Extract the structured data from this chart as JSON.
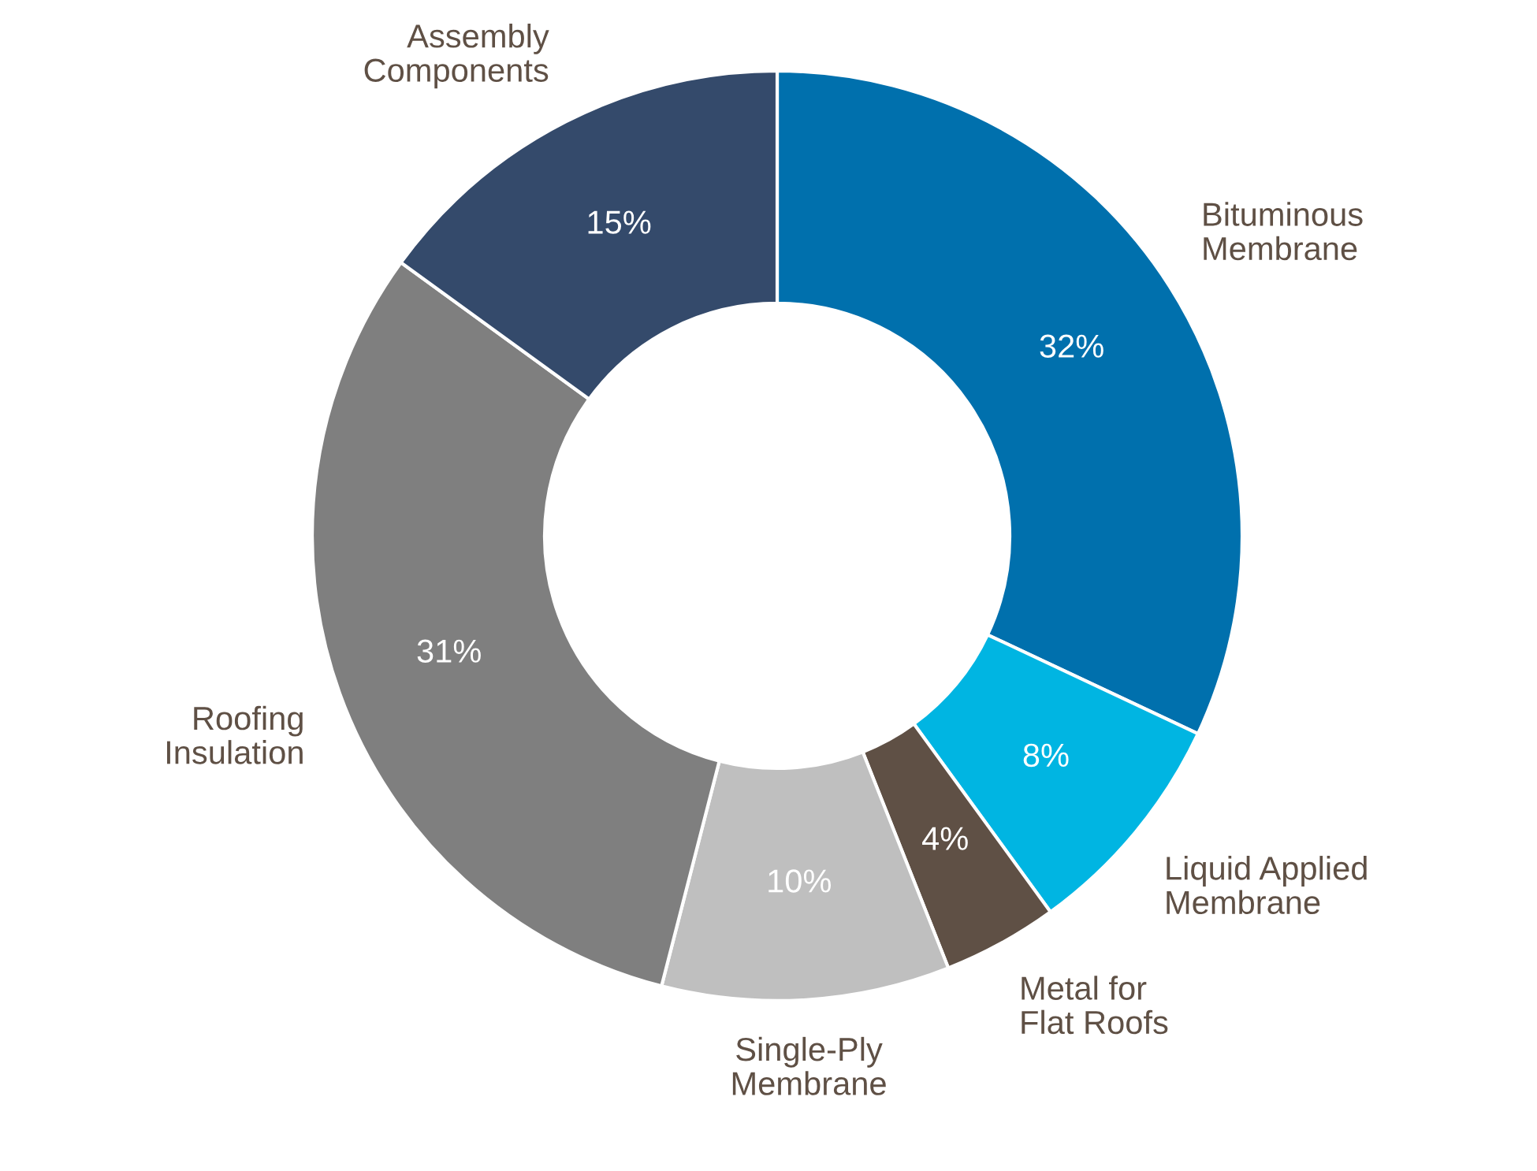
{
  "chart_data": {
    "type": "donut",
    "categories": [
      "Bituminous\nMembrane",
      "Liquid Applied\nMembrane",
      "Metal for\nFlat Roofs",
      "Single-Ply\nMembrane",
      "Roofing\nInsulation",
      "Assembly\nComponents"
    ],
    "values": [
      32,
      8,
      4,
      10,
      31,
      15
    ],
    "value_labels": [
      "32%",
      "8%",
      "4%",
      "10%",
      "31%",
      "15%"
    ],
    "colors": [
      "#0070ad",
      "#00b5e2",
      "#5f5045",
      "#bfbfbf",
      "#7f7f7f",
      "#344a6b"
    ],
    "legend": false
  }
}
